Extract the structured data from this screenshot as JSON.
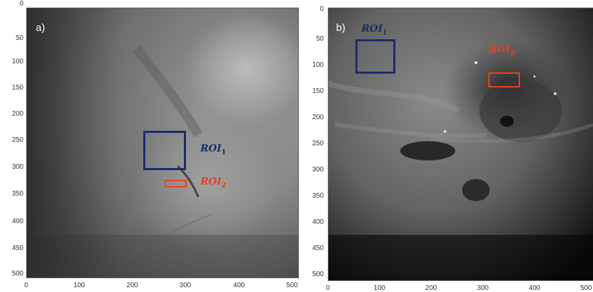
{
  "colors": {
    "roi1": "#1b2a6b",
    "roi2": "#e8411f"
  },
  "panels": [
    {
      "id": "a",
      "label": "a)",
      "y_ticks": [
        "0",
        "50",
        "100",
        "150",
        "200",
        "250",
        "300",
        "350",
        "400",
        "450",
        "500"
      ],
      "x_ticks": [
        "0",
        "100",
        "200",
        "300",
        "400",
        "500"
      ],
      "roi1": {
        "text": "ROI",
        "sub": "1"
      },
      "roi2": {
        "text": "ROI",
        "sub": "2"
      }
    },
    {
      "id": "b",
      "label": "b)",
      "y_ticks": [
        "0",
        "50",
        "100",
        "150",
        "200",
        "250",
        "300",
        "350",
        "400",
        "450",
        "500"
      ],
      "x_ticks": [
        "0",
        "100",
        "200",
        "300",
        "400",
        "500"
      ],
      "roi1": {
        "text": "ROI",
        "sub": "1"
      },
      "roi2": {
        "text": "ROI",
        "sub": "2"
      }
    }
  ]
}
